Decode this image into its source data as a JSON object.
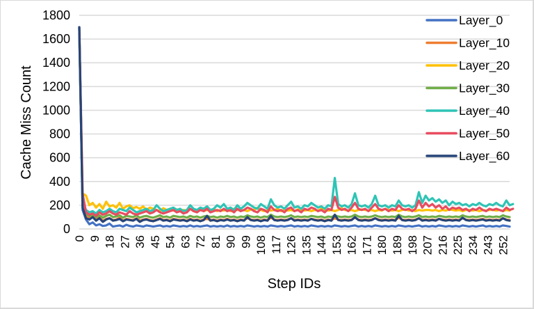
{
  "chart_data": {
    "type": "line",
    "title": "",
    "xlabel": "Step IDs",
    "ylabel": "Cache Miss Count",
    "ylim": [
      0,
      1800
    ],
    "yticks": [
      0,
      200,
      400,
      600,
      800,
      1000,
      1200,
      1400,
      1600,
      1800
    ],
    "xlim": [
      0,
      256
    ],
    "xticks": [
      0,
      9,
      18,
      27,
      36,
      45,
      54,
      63,
      72,
      81,
      90,
      99,
      108,
      117,
      126,
      135,
      144,
      153,
      162,
      171,
      180,
      189,
      198,
      207,
      216,
      225,
      234,
      243,
      252
    ],
    "grid": {
      "horizontal": true,
      "vertical": false
    },
    "legend_position": "top-right",
    "x_step": 2,
    "x_note": "values sampled every 2 steps from step 0 to step 256",
    "series": [
      {
        "name": "Layer_0",
        "color": "#4472c4",
        "values": [
          1700,
          160,
          80,
          40,
          55,
          30,
          40,
          25,
          30,
          45,
          20,
          25,
          30,
          20,
          35,
          25,
          20,
          30,
          25,
          20,
          30,
          25,
          20,
          25,
          30,
          20,
          25,
          20,
          30,
          25,
          20,
          25,
          20,
          30,
          20,
          25,
          20,
          25,
          30,
          20,
          25,
          20,
          25,
          20,
          30,
          20,
          25,
          20,
          25,
          20,
          30,
          25,
          20,
          25,
          20,
          25,
          20,
          30,
          25,
          20,
          25,
          20,
          25,
          30,
          20,
          25,
          20,
          25,
          20,
          30,
          25,
          20,
          25,
          20,
          25,
          20,
          30,
          25,
          20,
          25,
          20,
          25,
          30,
          20,
          25,
          20,
          25,
          20,
          30,
          25,
          20,
          25,
          20,
          25,
          20,
          30,
          25,
          20,
          25,
          20,
          25,
          30,
          20,
          25,
          20,
          25,
          20,
          30,
          25,
          20,
          25,
          20,
          25,
          20,
          30,
          25,
          20,
          25,
          20,
          25,
          30,
          20,
          25,
          20,
          25,
          20,
          30,
          25,
          20
        ]
      },
      {
        "name": "Layer_10",
        "color": "#ed7d31",
        "values": [
          1650,
          250,
          120,
          90,
          100,
          80,
          95,
          70,
          85,
          90,
          75,
          80,
          95,
          70,
          85,
          80,
          75,
          90,
          70,
          80,
          85,
          75,
          70,
          80,
          90,
          75,
          80,
          70,
          85,
          80,
          75,
          80,
          70,
          85,
          75,
          80,
          70,
          80,
          85,
          75,
          80,
          70,
          80,
          75,
          85,
          75,
          80,
          70,
          80,
          75,
          90,
          80,
          75,
          80,
          70,
          80,
          75,
          95,
          80,
          75,
          80,
          75,
          80,
          90,
          75,
          80,
          75,
          80,
          75,
          85,
          80,
          75,
          80,
          70,
          80,
          75,
          90,
          80,
          75,
          80,
          75,
          80,
          95,
          80,
          75,
          80,
          75,
          80,
          90,
          80,
          75,
          80,
          75,
          80,
          75,
          95,
          80,
          75,
          80,
          75,
          80,
          90,
          75,
          80,
          75,
          80,
          75,
          85,
          80,
          75,
          80,
          75,
          80,
          75,
          90,
          80,
          75,
          80,
          75,
          80,
          85,
          75,
          80,
          75,
          80,
          75,
          90,
          80,
          75
        ]
      },
      {
        "name": "Layer_20",
        "color": "#ffc000",
        "values": [
          1680,
          300,
          280,
          200,
          220,
          180,
          210,
          170,
          230,
          190,
          200,
          180,
          220,
          170,
          190,
          200,
          175,
          185,
          170,
          190,
          160,
          180,
          170,
          160,
          150,
          175,
          160,
          170,
          155,
          165,
          150,
          160,
          155,
          170,
          150,
          160,
          165,
          150,
          160,
          155,
          170,
          150,
          160,
          155,
          165,
          150,
          170,
          160,
          155,
          160,
          150,
          165,
          160,
          180,
          160,
          150,
          160,
          155,
          160,
          170,
          150,
          160,
          155,
          160,
          150,
          165,
          160,
          155,
          160,
          150,
          160,
          155,
          170,
          160,
          155,
          160,
          150,
          160,
          175,
          160,
          155,
          160,
          150,
          160,
          165,
          160,
          155,
          160,
          150,
          160,
          155,
          170,
          160,
          155,
          160,
          150,
          160,
          165,
          155,
          160,
          150,
          160,
          155,
          160,
          160,
          155,
          160,
          150,
          160,
          155,
          165,
          160,
          155,
          160,
          150,
          160,
          160,
          155,
          160,
          150,
          160,
          155,
          160,
          160,
          155,
          160,
          150,
          160,
          155
        ]
      },
      {
        "name": "Layer_30",
        "color": "#70ad47",
        "values": [
          1690,
          200,
          130,
          110,
          120,
          100,
          115,
          95,
          110,
          120,
          100,
          105,
          115,
          95,
          110,
          105,
          100,
          115,
          95,
          105,
          110,
          100,
          95,
          105,
          115,
          100,
          105,
          95,
          110,
          105,
          100,
          105,
          95,
          110,
          100,
          105,
          95,
          105,
          110,
          100,
          105,
          95,
          105,
          100,
          110,
          100,
          105,
          95,
          105,
          100,
          115,
          105,
          100,
          105,
          95,
          105,
          100,
          120,
          105,
          100,
          105,
          100,
          105,
          115,
          100,
          105,
          100,
          105,
          100,
          110,
          105,
          100,
          105,
          95,
          105,
          100,
          115,
          105,
          100,
          105,
          100,
          105,
          120,
          105,
          100,
          105,
          100,
          105,
          115,
          105,
          100,
          105,
          100,
          105,
          100,
          120,
          105,
          100,
          105,
          100,
          105,
          115,
          100,
          105,
          100,
          105,
          100,
          110,
          105,
          100,
          105,
          100,
          105,
          100,
          115,
          105,
          100,
          105,
          100,
          105,
          110,
          100,
          105,
          100,
          105,
          100,
          115,
          105,
          100
        ]
      },
      {
        "name": "Layer_40",
        "color": "#2ec4b6",
        "values": [
          1700,
          220,
          160,
          140,
          150,
          130,
          160,
          140,
          150,
          170,
          150,
          140,
          170,
          160,
          150,
          180,
          160,
          140,
          150,
          160,
          170,
          150,
          160,
          200,
          170,
          150,
          160,
          170,
          180,
          160,
          170,
          150,
          160,
          200,
          170,
          160,
          180,
          170,
          190,
          160,
          170,
          200,
          180,
          210,
          170,
          180,
          160,
          200,
          170,
          190,
          220,
          200,
          180,
          170,
          210,
          190,
          170,
          250,
          200,
          180,
          190,
          170,
          200,
          230,
          180,
          190,
          170,
          200,
          190,
          220,
          200,
          180,
          190,
          170,
          200,
          190,
          430,
          210,
          190,
          200,
          180,
          210,
          300,
          200,
          190,
          200,
          180,
          210,
          280,
          200,
          190,
          200,
          180,
          200,
          190,
          240,
          200,
          190,
          200,
          180,
          200,
          310,
          220,
          280,
          240,
          260,
          230,
          250,
          220,
          240,
          200,
          230,
          210,
          220,
          200,
          210,
          190,
          210,
          200,
          220,
          200,
          190,
          210,
          200,
          220,
          200,
          190,
          240,
          200,
          210
        ]
      },
      {
        "name": "Layer_50",
        "color": "#e84c5f",
        "values": [
          1700,
          300,
          140,
          120,
          130,
          110,
          140,
          120,
          130,
          150,
          130,
          120,
          140,
          130,
          120,
          150,
          130,
          120,
          130,
          140,
          150,
          130,
          140,
          160,
          140,
          130,
          140,
          150,
          160,
          140,
          150,
          130,
          140,
          170,
          150,
          140,
          160,
          150,
          170,
          140,
          150,
          160,
          150,
          170,
          150,
          160,
          140,
          170,
          150,
          160,
          180,
          170,
          150,
          140,
          170,
          160,
          140,
          190,
          160,
          150,
          160,
          140,
          170,
          180,
          150,
          160,
          140,
          170,
          160,
          180,
          170,
          150,
          160,
          140,
          170,
          160,
          270,
          180,
          160,
          170,
          150,
          180,
          220,
          170,
          160,
          170,
          150,
          180,
          210,
          170,
          160,
          170,
          150,
          170,
          160,
          200,
          170,
          160,
          170,
          150,
          170,
          240,
          180,
          220,
          190,
          210,
          180,
          200,
          170,
          190,
          160,
          180,
          170,
          180,
          160,
          170,
          150,
          170,
          160,
          180,
          160,
          150,
          170,
          160,
          170,
          160,
          150,
          180,
          160,
          170
        ]
      },
      {
        "name": "Layer_60",
        "color": "#264478",
        "values": [
          1700,
          180,
          90,
          80,
          100,
          70,
          90,
          60,
          80,
          90,
          70,
          75,
          85,
          65,
          80,
          75,
          70,
          85,
          60,
          75,
          80,
          70,
          65,
          75,
          85,
          70,
          75,
          65,
          80,
          75,
          70,
          75,
          65,
          80,
          70,
          75,
          65,
          75,
          110,
          70,
          75,
          65,
          75,
          70,
          80,
          70,
          75,
          65,
          75,
          70,
          100,
          75,
          70,
          75,
          65,
          75,
          70,
          110,
          75,
          70,
          75,
          70,
          75,
          90,
          70,
          75,
          70,
          75,
          70,
          85,
          75,
          70,
          75,
          65,
          75,
          70,
          120,
          75,
          70,
          75,
          70,
          75,
          100,
          75,
          70,
          75,
          70,
          75,
          90,
          75,
          70,
          75,
          70,
          75,
          70,
          110,
          75,
          70,
          75,
          70,
          75,
          90,
          70,
          75,
          70,
          75,
          70,
          85,
          75,
          70,
          75,
          70,
          75,
          70,
          95,
          75,
          70,
          75,
          70,
          75,
          80,
          70,
          75,
          70,
          75,
          70,
          90,
          75,
          70
        ]
      }
    ]
  },
  "axes": {
    "y_title": "Cache Miss Count",
    "x_title": "Step IDs"
  },
  "legend": {
    "items": [
      {
        "label": "Layer_0",
        "color": "#4472c4"
      },
      {
        "label": "Layer_10",
        "color": "#ed7d31"
      },
      {
        "label": "Layer_20",
        "color": "#ffc000"
      },
      {
        "label": "Layer_30",
        "color": "#70ad47"
      },
      {
        "label": "Layer_40",
        "color": "#2ec4b6"
      },
      {
        "label": "Layer_50",
        "color": "#e84c5f"
      },
      {
        "label": "Layer_60",
        "color": "#264478"
      }
    ]
  }
}
